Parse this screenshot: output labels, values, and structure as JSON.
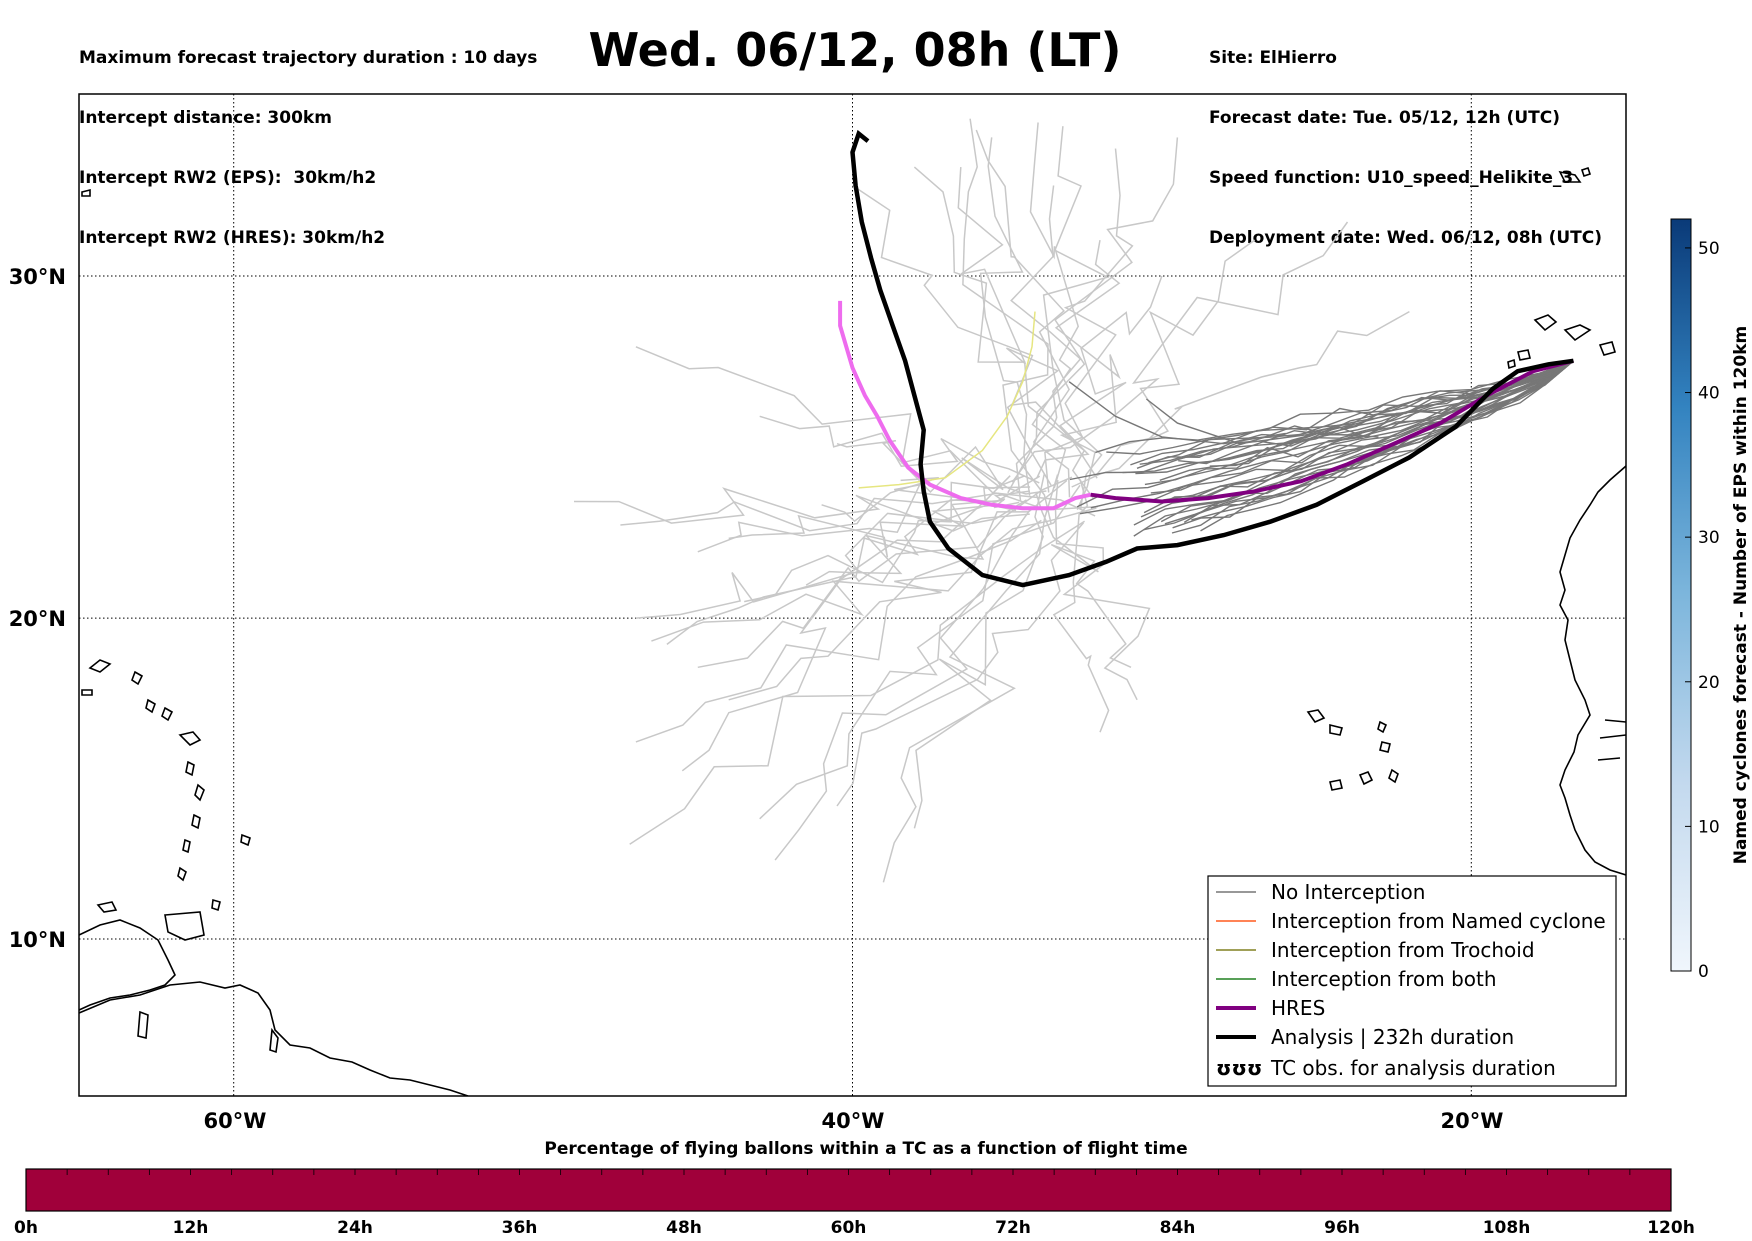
{
  "header": {
    "left": [
      "Maximum forecast trajectory duration : 10 days",
      "Intercept distance: 300km",
      "Intercept RW2 (EPS):  30km/h2",
      "Intercept RW2 (HRES): 30km/h2"
    ],
    "right": [
      "Site: ElHierro",
      "Forecast date: Tue. 05/12, 12h (UTC)",
      "Speed function: U10_speed_Helikite_3",
      "Deployment date: Wed. 06/12, 08h (UTC)"
    ],
    "title": "Wed. 06/12, 08h (LT)"
  },
  "map": {
    "lon_labels": [
      "60°W",
      "40°W",
      "20°W"
    ],
    "lat_labels": [
      "30°N",
      "20°N",
      "10°N"
    ],
    "lon_range": [
      -65,
      -15
    ],
    "lat_range": [
      5,
      34.5
    ]
  },
  "colors": {
    "no_interception": "#777777",
    "named_cyclone": "#ff5a1e",
    "trochoid": "#808020",
    "both": "#208020",
    "hres": "#800080",
    "analysis": "#000000",
    "eps_light": "#c8c8c8",
    "bar_fill": "#a0003a"
  },
  "legend": [
    {
      "label": "No Interception",
      "key": "no_interception"
    },
    {
      "label": "Interception from Named cyclone",
      "key": "named_cyclone"
    },
    {
      "label": "Interception from Trochoid",
      "key": "trochoid"
    },
    {
      "label": "Interception from both",
      "key": "both"
    },
    {
      "label": "HRES",
      "key": "hres"
    },
    {
      "label": "Analysis | 232h duration",
      "key": "analysis"
    },
    {
      "label": "TC obs. for analysis duration",
      "key": "tc_obs",
      "symbol": "ʊʊʊ"
    }
  ],
  "colorbar": {
    "label": "Named cyclones forecast - Number of EPS within 120km",
    "ticks": [
      "0",
      "10",
      "20",
      "30",
      "40",
      "50"
    ],
    "range": [
      0,
      52
    ]
  },
  "flight_bar": {
    "title": "Percentage of flying ballons within a TC as a function of flight time",
    "ticks": [
      "0h",
      "12h",
      "24h",
      "36h",
      "48h",
      "60h",
      "72h",
      "84h",
      "96h",
      "108h",
      "120h"
    ]
  },
  "trajectories": {
    "analysis": [
      [
        -16.7,
        27.6
      ],
      [
        -17.5,
        27.5
      ],
      [
        -18.5,
        27.3
      ],
      [
        -19.3,
        26.8
      ],
      [
        -20.5,
        25.7
      ],
      [
        -22,
        24.8
      ],
      [
        -23.5,
        24.1
      ],
      [
        -25,
        23.4
      ],
      [
        -26.5,
        22.9
      ],
      [
        -28,
        22.5
      ],
      [
        -29.5,
        22.2
      ],
      [
        -30.8,
        22.1
      ],
      [
        -31.8,
        21.7
      ],
      [
        -33.0,
        21.3
      ],
      [
        -34.5,
        21.0
      ],
      [
        -35.8,
        21.3
      ],
      [
        -36.9,
        22.1
      ],
      [
        -37.5,
        22.9
      ],
      [
        -37.7,
        23.8
      ],
      [
        -37.8,
        24.6
      ],
      [
        -37.7,
        25.6
      ],
      [
        -38.0,
        26.6
      ],
      [
        -38.3,
        27.6
      ],
      [
        -38.7,
        28.6
      ],
      [
        -39.1,
        29.6
      ],
      [
        -39.4,
        30.5
      ],
      [
        -39.7,
        31.5
      ],
      [
        -39.9,
        32.5
      ],
      [
        -40.0,
        33.4
      ],
      [
        -39.8,
        33.9
      ],
      [
        -39.5,
        33.7
      ]
    ],
    "hres": [
      [
        -16.7,
        27.6
      ],
      [
        -18,
        27.3
      ],
      [
        -19.5,
        26.6
      ],
      [
        -21,
        25.8
      ],
      [
        -22.5,
        25.2
      ],
      [
        -24,
        24.6
      ],
      [
        -25.5,
        24.1
      ],
      [
        -27,
        23.8
      ],
      [
        -28.5,
        23.6
      ],
      [
        -30,
        23.5
      ],
      [
        -31.5,
        23.6
      ],
      [
        -32.3,
        23.7
      ]
    ],
    "hres_ext": [
      [
        -32.3,
        23.7
      ],
      [
        -32.8,
        23.6
      ],
      [
        -33.5,
        23.3
      ],
      [
        -34.5,
        23.3
      ],
      [
        -35.5,
        23.4
      ],
      [
        -36.5,
        23.6
      ],
      [
        -37.5,
        24.0
      ],
      [
        -38.2,
        24.5
      ],
      [
        -38.8,
        25.3
      ],
      [
        -39.2,
        26.0
      ],
      [
        -39.6,
        26.6
      ],
      [
        -40.0,
        27.4
      ],
      [
        -40.2,
        28.0
      ],
      [
        -40.4,
        28.6
      ],
      [
        -40.4,
        29.3
      ]
    ],
    "yellow": [
      [
        -39.8,
        23.9
      ],
      [
        -38.5,
        24.0
      ],
      [
        -37.0,
        24.2
      ],
      [
        -35.8,
        25.0
      ],
      [
        -35.0,
        26.0
      ],
      [
        -34.5,
        27.0
      ],
      [
        -34.2,
        28.0
      ],
      [
        -34.1,
        29.0
      ]
    ],
    "eps_grey_seed": 7,
    "eps_light_seed": 11
  }
}
